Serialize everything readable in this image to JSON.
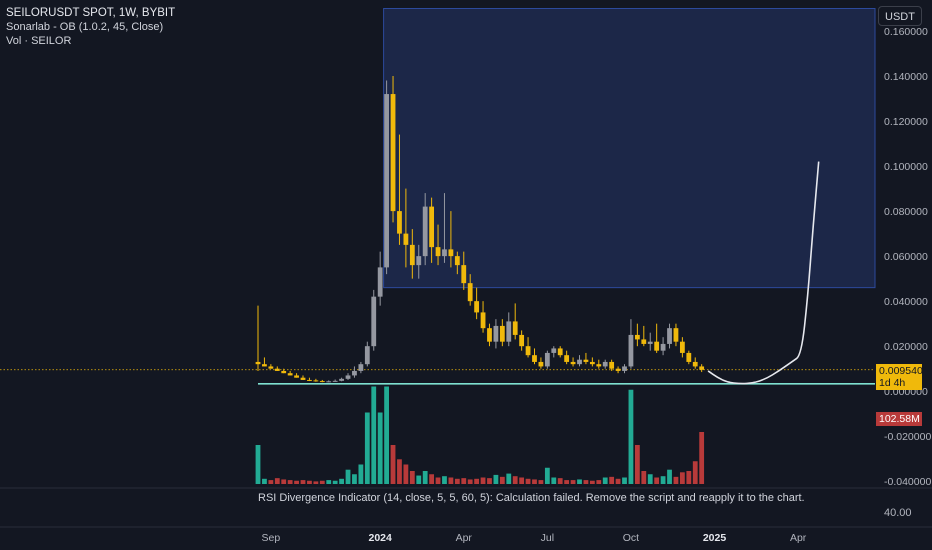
{
  "header": {
    "symbol_line": "SEILORUSDT SPOT, 1W, BYBIT",
    "indicator_1": "Sonarlab - OB (1.0.2, 45, Close)",
    "indicator_2": "Vol · SEILOR"
  },
  "toolbar": {
    "currency_label": "USDT"
  },
  "price_tag": {
    "price": "0.009540",
    "countdown": "1d 4h",
    "color": "#f0b90b"
  },
  "volume_tag": {
    "value": "102.58M",
    "color": "#b83a3a"
  },
  "rsi_panel": {
    "message": "RSI Divergence Indicator (14, close, 5, 5, 60, 5): Calculation failed. Remove the script and reapply it to the chart.",
    "value": "40.00"
  },
  "colors": {
    "background": "#131722",
    "bull_candle": "#f0b90b",
    "bear_candle": "#9598a1",
    "bull_volume": "#22ab94",
    "bear_volume": "#b83a3a",
    "order_block": "#1e2a4f",
    "order_block_border": "#2c4a9c",
    "support_line": "#7ee0d0",
    "projection": "#e6e8ee"
  },
  "chart_data": {
    "type": "candlestick",
    "y_axis": {
      "labels": [
        "0.160000",
        "0.140000",
        "0.120000",
        "0.100000",
        "0.080000",
        "0.060000",
        "0.040000",
        "0.020000",
        "0.000000",
        "-0.020000",
        "-0.040000"
      ],
      "values": [
        0.16,
        0.14,
        0.12,
        0.1,
        0.08,
        0.06,
        0.04,
        0.02,
        0.0,
        -0.02,
        -0.04
      ],
      "ylim": [
        -0.043,
        0.172
      ]
    },
    "x_axis": {
      "labels": [
        {
          "text": "Sep",
          "week": 2,
          "bold": false
        },
        {
          "text": "2024",
          "week": 19,
          "bold": true
        },
        {
          "text": "Apr",
          "week": 32,
          "bold": false
        },
        {
          "text": "Jul",
          "week": 45,
          "bold": false
        },
        {
          "text": "Oct",
          "week": 58,
          "bold": false
        },
        {
          "text": "2025",
          "week": 71,
          "bold": true
        },
        {
          "text": "Apr",
          "week": 84,
          "bold": false
        }
      ]
    },
    "candles": [
      [
        0.013,
        0.038,
        0.009,
        0.012
      ],
      [
        0.012,
        0.015,
        0.011,
        0.011
      ],
      [
        0.011,
        0.012,
        0.01,
        0.01
      ],
      [
        0.01,
        0.011,
        0.009,
        0.009
      ],
      [
        0.009,
        0.01,
        0.008,
        0.008
      ],
      [
        0.008,
        0.009,
        0.007,
        0.007
      ],
      [
        0.007,
        0.008,
        0.006,
        0.006
      ],
      [
        0.006,
        0.007,
        0.005,
        0.005
      ],
      [
        0.005,
        0.006,
        0.0045,
        0.0048
      ],
      [
        0.0048,
        0.0055,
        0.0042,
        0.0045
      ],
      [
        0.0045,
        0.005,
        0.004,
        0.0042
      ],
      [
        0.0042,
        0.0048,
        0.004,
        0.0044
      ],
      [
        0.0044,
        0.0052,
        0.0042,
        0.0046
      ],
      [
        0.0046,
        0.006,
        0.0044,
        0.0055
      ],
      [
        0.0055,
        0.008,
        0.005,
        0.007
      ],
      [
        0.007,
        0.011,
        0.006,
        0.009
      ],
      [
        0.009,
        0.013,
        0.008,
        0.012
      ],
      [
        0.012,
        0.022,
        0.011,
        0.02
      ],
      [
        0.02,
        0.045,
        0.018,
        0.042
      ],
      [
        0.042,
        0.062,
        0.038,
        0.055
      ],
      [
        0.055,
        0.138,
        0.052,
        0.132
      ],
      [
        0.132,
        0.14,
        0.075,
        0.08
      ],
      [
        0.08,
        0.114,
        0.065,
        0.07
      ],
      [
        0.07,
        0.09,
        0.055,
        0.065
      ],
      [
        0.065,
        0.072,
        0.05,
        0.056
      ],
      [
        0.056,
        0.065,
        0.05,
        0.06
      ],
      [
        0.06,
        0.088,
        0.056,
        0.082
      ],
      [
        0.082,
        0.086,
        0.057,
        0.064
      ],
      [
        0.064,
        0.074,
        0.056,
        0.06
      ],
      [
        0.06,
        0.088,
        0.057,
        0.063
      ],
      [
        0.063,
        0.08,
        0.055,
        0.06
      ],
      [
        0.06,
        0.062,
        0.052,
        0.056
      ],
      [
        0.056,
        0.062,
        0.045,
        0.048
      ],
      [
        0.048,
        0.052,
        0.038,
        0.04
      ],
      [
        0.04,
        0.046,
        0.032,
        0.035
      ],
      [
        0.035,
        0.04,
        0.026,
        0.028
      ],
      [
        0.028,
        0.03,
        0.02,
        0.022
      ],
      [
        0.022,
        0.032,
        0.019,
        0.029
      ],
      [
        0.029,
        0.032,
        0.02,
        0.022
      ],
      [
        0.022,
        0.035,
        0.02,
        0.031
      ],
      [
        0.031,
        0.039,
        0.023,
        0.025
      ],
      [
        0.025,
        0.027,
        0.018,
        0.02
      ],
      [
        0.02,
        0.024,
        0.015,
        0.016
      ],
      [
        0.016,
        0.019,
        0.012,
        0.013
      ],
      [
        0.013,
        0.015,
        0.01,
        0.011
      ],
      [
        0.011,
        0.018,
        0.01,
        0.017
      ],
      [
        0.017,
        0.02,
        0.015,
        0.019
      ],
      [
        0.019,
        0.02,
        0.015,
        0.016
      ],
      [
        0.016,
        0.018,
        0.012,
        0.013
      ],
      [
        0.013,
        0.015,
        0.011,
        0.012
      ],
      [
        0.012,
        0.016,
        0.011,
        0.014
      ],
      [
        0.014,
        0.017,
        0.012,
        0.013
      ],
      [
        0.013,
        0.015,
        0.011,
        0.012
      ],
      [
        0.012,
        0.014,
        0.01,
        0.011
      ],
      [
        0.011,
        0.014,
        0.01,
        0.013
      ],
      [
        0.013,
        0.014,
        0.009,
        0.01
      ],
      [
        0.01,
        0.011,
        0.008,
        0.009
      ],
      [
        0.009,
        0.012,
        0.008,
        0.011
      ],
      [
        0.011,
        0.032,
        0.01,
        0.025
      ],
      [
        0.025,
        0.03,
        0.02,
        0.023
      ],
      [
        0.023,
        0.029,
        0.02,
        0.021
      ],
      [
        0.021,
        0.026,
        0.018,
        0.022
      ],
      [
        0.022,
        0.03,
        0.017,
        0.018
      ],
      [
        0.018,
        0.024,
        0.016,
        0.021
      ],
      [
        0.021,
        0.03,
        0.019,
        0.028
      ],
      [
        0.028,
        0.03,
        0.02,
        0.022
      ],
      [
        0.022,
        0.024,
        0.015,
        0.017
      ],
      [
        0.017,
        0.018,
        0.012,
        0.013
      ],
      [
        0.013,
        0.015,
        0.01,
        0.011
      ],
      [
        0.011,
        0.012,
        0.0085,
        0.0095
      ]
    ],
    "volume": [
      {
        "v": 60,
        "up": true
      },
      {
        "v": 8,
        "up": true
      },
      {
        "v": 6,
        "up": false
      },
      {
        "v": 9,
        "up": false
      },
      {
        "v": 7,
        "up": false
      },
      {
        "v": 6,
        "up": false
      },
      {
        "v": 5,
        "up": false
      },
      {
        "v": 6,
        "up": false
      },
      {
        "v": 5,
        "up": false
      },
      {
        "v": 4,
        "up": false
      },
      {
        "v": 5,
        "up": false
      },
      {
        "v": 6,
        "up": true
      },
      {
        "v": 5,
        "up": true
      },
      {
        "v": 8,
        "up": true
      },
      {
        "v": 22,
        "up": true
      },
      {
        "v": 15,
        "up": true
      },
      {
        "v": 30,
        "up": true
      },
      {
        "v": 110,
        "up": true
      },
      {
        "v": 150,
        "up": true
      },
      {
        "v": 110,
        "up": true
      },
      {
        "v": 150,
        "up": true
      },
      {
        "v": 60,
        "up": false
      },
      {
        "v": 38,
        "up": false
      },
      {
        "v": 30,
        "up": false
      },
      {
        "v": 20,
        "up": false
      },
      {
        "v": 13,
        "up": true
      },
      {
        "v": 20,
        "up": true
      },
      {
        "v": 15,
        "up": false
      },
      {
        "v": 10,
        "up": false
      },
      {
        "v": 12,
        "up": true
      },
      {
        "v": 10,
        "up": false
      },
      {
        "v": 8,
        "up": false
      },
      {
        "v": 9,
        "up": false
      },
      {
        "v": 7,
        "up": false
      },
      {
        "v": 8,
        "up": false
      },
      {
        "v": 10,
        "up": false
      },
      {
        "v": 9,
        "up": false
      },
      {
        "v": 14,
        "up": true
      },
      {
        "v": 11,
        "up": false
      },
      {
        "v": 16,
        "up": true
      },
      {
        "v": 12,
        "up": false
      },
      {
        "v": 10,
        "up": false
      },
      {
        "v": 8,
        "up": false
      },
      {
        "v": 7,
        "up": false
      },
      {
        "v": 6,
        "up": false
      },
      {
        "v": 25,
        "up": true
      },
      {
        "v": 10,
        "up": true
      },
      {
        "v": 9,
        "up": false
      },
      {
        "v": 6,
        "up": false
      },
      {
        "v": 6,
        "up": false
      },
      {
        "v": 7,
        "up": true
      },
      {
        "v": 6,
        "up": false
      },
      {
        "v": 5,
        "up": false
      },
      {
        "v": 6,
        "up": false
      },
      {
        "v": 10,
        "up": true
      },
      {
        "v": 11,
        "up": false
      },
      {
        "v": 8,
        "up": false
      },
      {
        "v": 10,
        "up": true
      },
      {
        "v": 145,
        "up": true
      },
      {
        "v": 60,
        "up": false
      },
      {
        "v": 20,
        "up": false
      },
      {
        "v": 15,
        "up": true
      },
      {
        "v": 10,
        "up": false
      },
      {
        "v": 12,
        "up": true
      },
      {
        "v": 22,
        "up": true
      },
      {
        "v": 11,
        "up": false
      },
      {
        "v": 18,
        "up": false
      },
      {
        "v": 20,
        "up": false
      },
      {
        "v": 35,
        "up": false
      },
      {
        "v": 80,
        "up": false
      }
    ],
    "order_block": {
      "week_start": 20,
      "week_end": 96,
      "top": 0.17,
      "bottom": 0.046
    },
    "support_level": 0.0033,
    "current_price": 0.00954,
    "projection_curve": [
      [
        70,
        0.009
      ],
      [
        71.5,
        0.006
      ],
      [
        73,
        0.004
      ],
      [
        75,
        0.0033
      ],
      [
        77,
        0.0036
      ],
      [
        79,
        0.0055
      ],
      [
        81,
        0.009
      ],
      [
        83,
        0.013
      ],
      [
        84.5,
        0.016
      ],
      [
        85.5,
        0.042
      ],
      [
        86.3,
        0.072
      ],
      [
        87.2,
        0.102
      ]
    ]
  }
}
